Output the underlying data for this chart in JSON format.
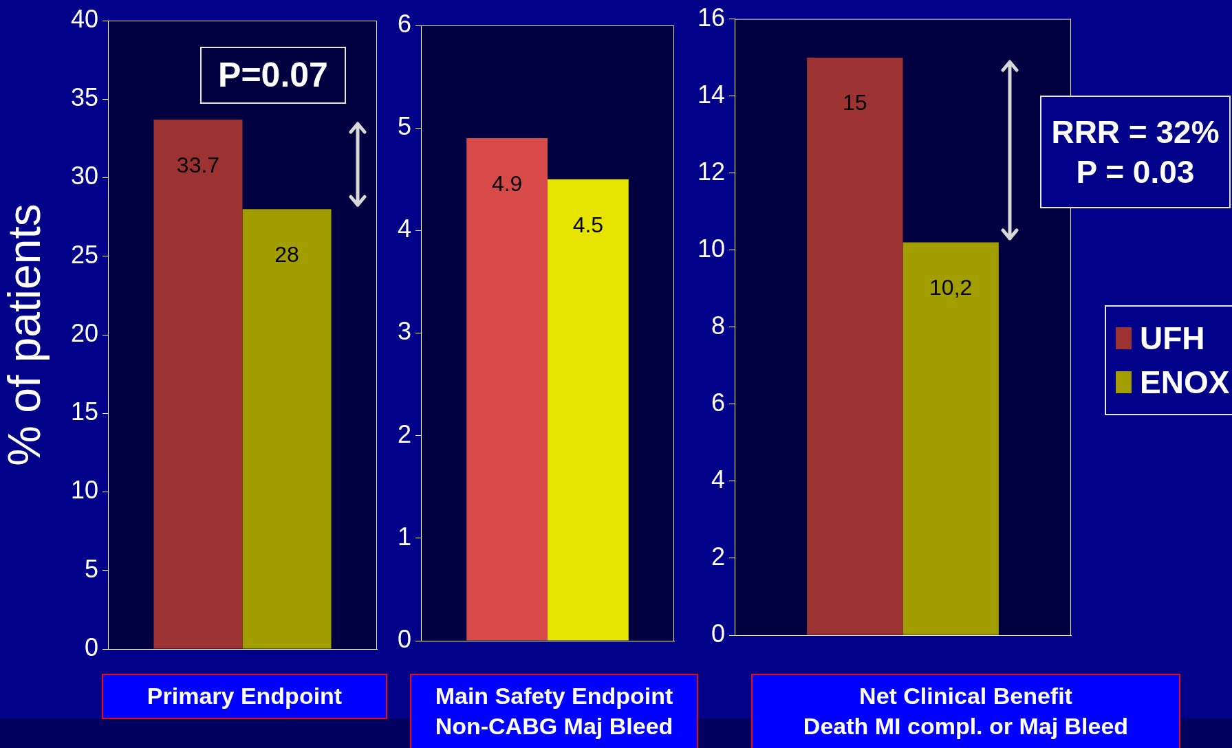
{
  "chart_data": [
    {
      "type": "bar",
      "title": "Primary Endpoint",
      "ylabel": "% of patients",
      "categories": [
        null
      ],
      "series": [
        {
          "color": "#9c3232",
          "values": [
            33.7
          ]
        },
        {
          "color": "#a39e00",
          "values": [
            28
          ]
        }
      ],
      "ylim": [
        0,
        40
      ],
      "yticks": [
        0,
        5,
        10,
        15,
        20,
        25,
        30,
        35,
        40
      ],
      "data_labels": true,
      "annotations": [
        "P=0.07"
      ]
    },
    {
      "type": "bar",
      "title": "Main Safety Endpoint",
      "subtitle": "Non-CABG Maj Bleed",
      "categories": [
        null
      ],
      "series": [
        {
          "color": "#d84a4a",
          "values": [
            4.9
          ]
        },
        {
          "color": "#e6e400",
          "values": [
            4.5
          ]
        }
      ],
      "ylim": [
        0,
        6
      ],
      "yticks": [
        0,
        1,
        2,
        3,
        4,
        5,
        6
      ],
      "data_labels": true
    },
    {
      "type": "bar",
      "title": "Net Clinical Benefit",
      "subtitle": "Death MI compl. or Maj Bleed",
      "categories": [
        null
      ],
      "series": [
        {
          "name": "UFH",
          "color": "#9c3232",
          "values": [
            15
          ],
          "value_labels": [
            "15"
          ]
        },
        {
          "name": "ENOX",
          "color": "#a39e00",
          "values": [
            10.2
          ],
          "value_labels": [
            "10,2"
          ]
        }
      ],
      "ylim": [
        0,
        16
      ],
      "yticks": [
        0,
        2,
        4,
        6,
        8,
        10,
        12,
        14,
        16
      ],
      "annotations": [
        "RRR = 32%",
        "P = 0.03"
      ],
      "legend": "right"
    }
  ]
}
